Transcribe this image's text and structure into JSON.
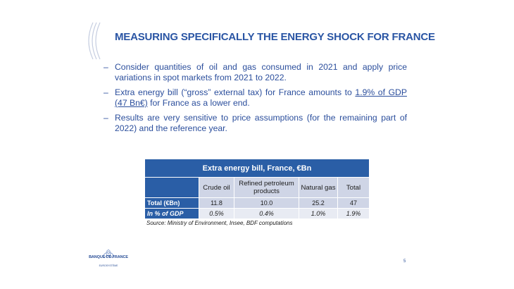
{
  "slide": {
    "title": "MEASURING SPECIFICALLY THE ENERGY SHOCK FOR FRANCE",
    "page_number": "5"
  },
  "bullets": [
    {
      "dash": "–",
      "text": "Consider quantities of oil and gas consumed in 2021 and apply price variations in spot markets from 2021 to 2022."
    },
    {
      "dash": "–",
      "text_before": "Extra energy bill (“gross” external tax) for France amounts to ",
      "link": "1.9% of GDP (47 Bn€)",
      "text_after": " for France as a lower end."
    },
    {
      "dash": "–",
      "text": "Results are very sensitive to price assumptions (for the remaining part of 2022) and the reference year."
    }
  ],
  "table": {
    "caption": "Extra energy bill, France, €Bn",
    "columns": [
      "Crude oil",
      "Refined petroleum products",
      "Natural gas",
      "Total"
    ],
    "rows": [
      {
        "label": "Total (€Bn)",
        "values": [
          "11.8",
          "10.0",
          "25.2",
          "47"
        ]
      },
      {
        "label": "In % of GDP",
        "values": [
          "0.5%",
          "0.4%",
          "1.0%",
          "1.9%"
        ]
      }
    ],
    "source": "Source: Ministry of Environment, Insee, BDF computations"
  },
  "logo": {
    "name": "BANQUE DE FRANCE",
    "tagline": "EUROSYSTÈME"
  },
  "colors": {
    "title": "#2a55a4",
    "table_header": "#2a5ea6",
    "table_row_light": "#cfd5e6",
    "table_row_lighter": "#e8ebf3"
  }
}
